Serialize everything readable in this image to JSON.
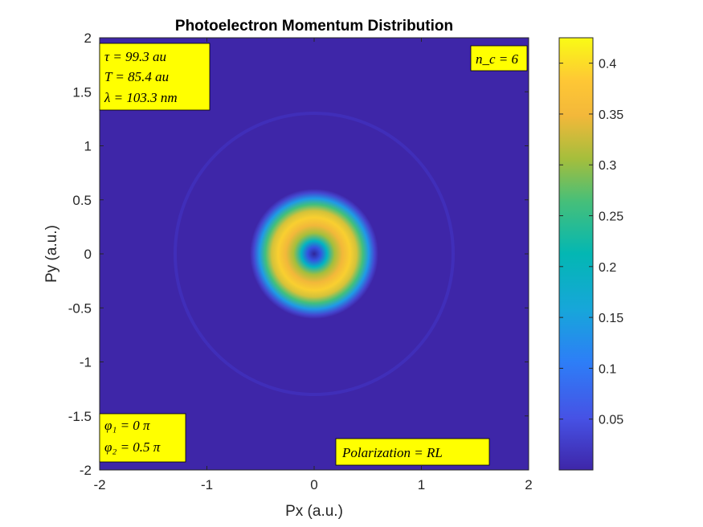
{
  "chart_data": {
    "type": "heatmap",
    "title": "Photoelectron Momentum Distribution",
    "xlabel": "Px (a.u.)",
    "ylabel": "Py (a.u.)",
    "xlim": [
      -2,
      2
    ],
    "ylim": [
      -2,
      2
    ],
    "x_ticks": [
      "-2",
      "-1",
      "0",
      "1",
      "2"
    ],
    "y_ticks": [
      "2",
      "1.5",
      "1",
      "0.5",
      "0",
      "-0.5",
      "-1",
      "-1.5",
      "-2"
    ],
    "colormap": "parula",
    "colorbar": {
      "range": [
        0,
        0.425
      ],
      "ticks": [
        "0.4",
        "0.35",
        "0.3",
        "0.25",
        "0.2",
        "0.15",
        "0.1",
        "0.05"
      ],
      "tick_values": [
        0.4,
        0.35,
        0.3,
        0.25,
        0.2,
        0.15,
        0.1,
        0.05
      ]
    },
    "features": {
      "main_ring": {
        "center": [
          0,
          0
        ],
        "peak_radius": 0.32,
        "peak_value": 0.4,
        "outer_edge_radius": 0.6,
        "center_value": 0.02
      },
      "faint_outer_ring": {
        "center": [
          0,
          0
        ],
        "radius": 1.3,
        "value": 0.03
      }
    },
    "annotations": {
      "top_left": [
        "τ = 99.3 au",
        "T = 85.4 au",
        "λ = 103.3 nm"
      ],
      "top_right": [
        "n_c = 6"
      ],
      "bottom_left": [
        "φ₁ = 0 π",
        "φ₂ = 0.5 π"
      ],
      "bottom_right": [
        "Polarization = RL"
      ]
    },
    "grid": false
  }
}
